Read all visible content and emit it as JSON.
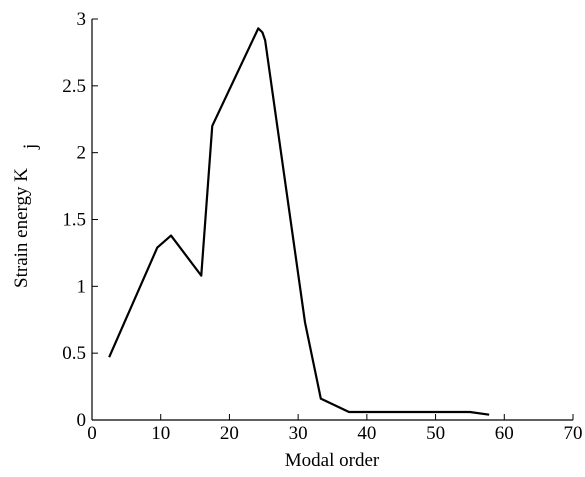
{
  "chart_data": {
    "type": "line",
    "x_label": "Modal order",
    "y_label": "Strain energy K",
    "y_label_subscript": "j",
    "series": [
      {
        "color": "#000000",
        "x": [
          2.5,
          9.5,
          11.5,
          15.9,
          17.5,
          24.2,
          24.8,
          25.2,
          31,
          33.3,
          37.4,
          55,
          57.8
        ],
        "values": [
          0.47,
          1.29,
          1.38,
          1.08,
          2.2,
          2.93,
          2.9,
          2.84,
          0.73,
          0.16,
          0.06,
          0.06,
          0.04
        ]
      }
    ],
    "xlim": [
      0,
      70
    ],
    "xticks": [
      0,
      10,
      20,
      30,
      40,
      50,
      60,
      70
    ],
    "ylim": [
      0,
      3
    ],
    "yticks": [
      0,
      0.5,
      1,
      1.5,
      2,
      2.5,
      3
    ]
  }
}
